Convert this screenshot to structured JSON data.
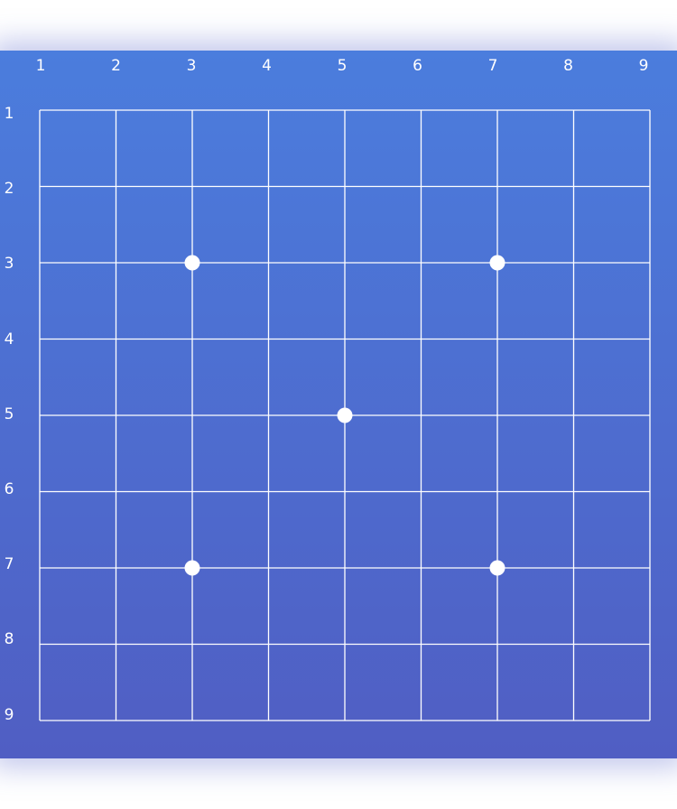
{
  "board": {
    "size": 9,
    "column_labels": [
      "1",
      "2",
      "3",
      "4",
      "5",
      "6",
      "7",
      "8",
      "9"
    ],
    "row_labels": [
      "1",
      "2",
      "3",
      "4",
      "5",
      "6",
      "7",
      "8",
      "9"
    ],
    "star_points": [
      {
        "col": 3,
        "row": 3
      },
      {
        "col": 7,
        "row": 3
      },
      {
        "col": 5,
        "row": 5
      },
      {
        "col": 3,
        "row": 7
      },
      {
        "col": 7,
        "row": 7
      }
    ],
    "colors": {
      "background_top": "#4b7ddd",
      "background_bottom": "#505ec3",
      "lines": "#ffffff",
      "star_points": "#ffffff",
      "labels": "#ffffff"
    }
  }
}
